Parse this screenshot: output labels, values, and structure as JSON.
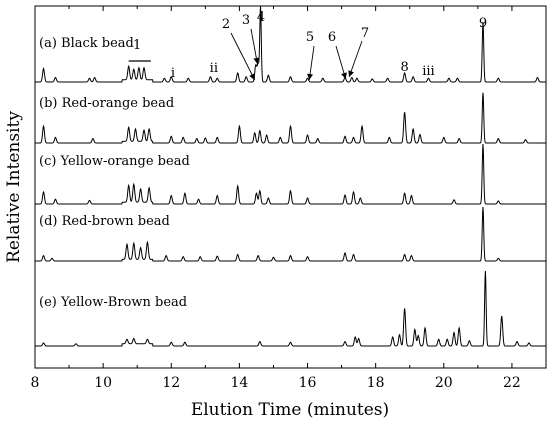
{
  "chart_data": {
    "type": "line",
    "xlabel": "Elution Time (minutes)",
    "ylabel": "Relative Intensity",
    "xlim": [
      8,
      23
    ],
    "x_ticks": [
      8,
      10,
      12,
      14,
      16,
      18,
      20,
      22
    ],
    "series": [
      {
        "name": "(a) Black bead",
        "peaks": [
          [
            8.25,
            0.18
          ],
          [
            8.6,
            0.06
          ],
          [
            9.6,
            0.05
          ],
          [
            9.75,
            0.06
          ],
          [
            10.75,
            0.18
          ],
          [
            10.9,
            0.14
          ],
          [
            11.05,
            0.16
          ],
          [
            11.2,
            0.16
          ],
          [
            11.8,
            0.05
          ],
          [
            12.0,
            0.07
          ],
          [
            12.5,
            0.05
          ],
          [
            13.15,
            0.07
          ],
          [
            13.35,
            0.05
          ],
          [
            13.95,
            0.12
          ],
          [
            14.2,
            0.07
          ],
          [
            14.48,
            0.22
          ],
          [
            14.55,
            0.24
          ],
          [
            14.62,
            1.0
          ],
          [
            14.85,
            0.09
          ],
          [
            15.5,
            0.07
          ],
          [
            16.0,
            0.05
          ],
          [
            16.45,
            0.05
          ],
          [
            17.1,
            0.06
          ],
          [
            17.3,
            0.06
          ],
          [
            17.45,
            0.05
          ],
          [
            17.9,
            0.04
          ],
          [
            18.35,
            0.05
          ],
          [
            18.85,
            0.12
          ],
          [
            19.1,
            0.07
          ],
          [
            19.55,
            0.05
          ],
          [
            20.15,
            0.05
          ],
          [
            20.4,
            0.05
          ],
          [
            21.15,
            0.8
          ],
          [
            21.6,
            0.05
          ],
          [
            22.75,
            0.06
          ]
        ]
      },
      {
        "name": "(b) Red-orange bead",
        "peaks": [
          [
            8.25,
            0.3
          ],
          [
            8.6,
            0.1
          ],
          [
            9.7,
            0.08
          ],
          [
            10.75,
            0.25
          ],
          [
            10.95,
            0.22
          ],
          [
            11.2,
            0.2
          ],
          [
            11.35,
            0.22
          ],
          [
            12.0,
            0.12
          ],
          [
            12.35,
            0.1
          ],
          [
            12.75,
            0.08
          ],
          [
            13.0,
            0.09
          ],
          [
            13.35,
            0.1
          ],
          [
            14.0,
            0.3
          ],
          [
            14.45,
            0.18
          ],
          [
            14.6,
            0.22
          ],
          [
            14.8,
            0.14
          ],
          [
            15.2,
            0.1
          ],
          [
            15.5,
            0.3
          ],
          [
            16.0,
            0.14
          ],
          [
            16.3,
            0.08
          ],
          [
            17.1,
            0.12
          ],
          [
            17.35,
            0.1
          ],
          [
            17.6,
            0.3
          ],
          [
            18.4,
            0.1
          ],
          [
            18.85,
            0.55
          ],
          [
            19.1,
            0.25
          ],
          [
            19.3,
            0.15
          ],
          [
            20.0,
            0.1
          ],
          [
            20.45,
            0.08
          ],
          [
            21.15,
            0.9
          ],
          [
            21.6,
            0.08
          ],
          [
            22.4,
            0.06
          ]
        ]
      },
      {
        "name": "(c) Yellow-orange bead",
        "peaks": [
          [
            8.25,
            0.2
          ],
          [
            8.6,
            0.08
          ],
          [
            9.6,
            0.06
          ],
          [
            10.75,
            0.28
          ],
          [
            10.9,
            0.3
          ],
          [
            11.1,
            0.22
          ],
          [
            11.35,
            0.24
          ],
          [
            12.0,
            0.14
          ],
          [
            12.4,
            0.18
          ],
          [
            12.8,
            0.08
          ],
          [
            13.35,
            0.14
          ],
          [
            13.95,
            0.3
          ],
          [
            14.5,
            0.18
          ],
          [
            14.6,
            0.22
          ],
          [
            14.85,
            0.1
          ],
          [
            15.5,
            0.22
          ],
          [
            16.0,
            0.1
          ],
          [
            17.1,
            0.15
          ],
          [
            17.35,
            0.2
          ],
          [
            17.55,
            0.1
          ],
          [
            18.85,
            0.18
          ],
          [
            19.05,
            0.14
          ],
          [
            20.3,
            0.07
          ],
          [
            21.15,
            1.0
          ],
          [
            21.6,
            0.05
          ]
        ]
      },
      {
        "name": "(d) Red-brown bead",
        "peaks": [
          [
            8.25,
            0.1
          ],
          [
            8.5,
            0.05
          ],
          [
            10.7,
            0.28
          ],
          [
            10.9,
            0.3
          ],
          [
            11.1,
            0.22
          ],
          [
            11.3,
            0.32
          ],
          [
            11.85,
            0.1
          ],
          [
            12.35,
            0.08
          ],
          [
            12.85,
            0.08
          ],
          [
            13.35,
            0.09
          ],
          [
            13.95,
            0.12
          ],
          [
            14.55,
            0.1
          ],
          [
            15.0,
            0.07
          ],
          [
            15.5,
            0.1
          ],
          [
            16.0,
            0.08
          ],
          [
            17.1,
            0.15
          ],
          [
            17.35,
            0.12
          ],
          [
            18.85,
            0.12
          ],
          [
            19.05,
            0.1
          ],
          [
            21.15,
            1.0
          ],
          [
            21.6,
            0.05
          ]
        ]
      },
      {
        "name": "(e) Yellow-Brown bead",
        "peaks": [
          [
            8.25,
            0.04
          ],
          [
            9.2,
            0.03
          ],
          [
            10.7,
            0.06
          ],
          [
            10.9,
            0.07
          ],
          [
            11.3,
            0.06
          ],
          [
            12.0,
            0.05
          ],
          [
            12.4,
            0.05
          ],
          [
            14.6,
            0.06
          ],
          [
            15.5,
            0.05
          ],
          [
            17.1,
            0.06
          ],
          [
            17.4,
            0.12
          ],
          [
            17.5,
            0.1
          ],
          [
            18.5,
            0.12
          ],
          [
            18.7,
            0.15
          ],
          [
            18.85,
            0.5
          ],
          [
            19.15,
            0.22
          ],
          [
            19.25,
            0.14
          ],
          [
            19.45,
            0.24
          ],
          [
            19.85,
            0.09
          ],
          [
            20.1,
            0.09
          ],
          [
            20.3,
            0.18
          ],
          [
            20.45,
            0.24
          ],
          [
            20.75,
            0.07
          ],
          [
            21.22,
            1.0
          ],
          [
            21.7,
            0.4
          ],
          [
            22.15,
            0.06
          ],
          [
            22.5,
            0.04
          ]
        ]
      }
    ],
    "annotations": [
      {
        "text": "1",
        "x": 11.0
      },
      {
        "text": "i",
        "x": 12.05
      },
      {
        "text": "ii",
        "x": 13.25
      },
      {
        "text": "2",
        "x": 14.48
      },
      {
        "text": "3",
        "x": 14.55
      },
      {
        "text": "4",
        "x": 14.62
      },
      {
        "text": "5",
        "x": 16.05
      },
      {
        "text": "6",
        "x": 17.12
      },
      {
        "text": "7",
        "x": 17.22
      },
      {
        "text": "8",
        "x": 18.85
      },
      {
        "text": "iii",
        "x": 19.5
      },
      {
        "text": "9",
        "x": 21.15
      }
    ]
  }
}
